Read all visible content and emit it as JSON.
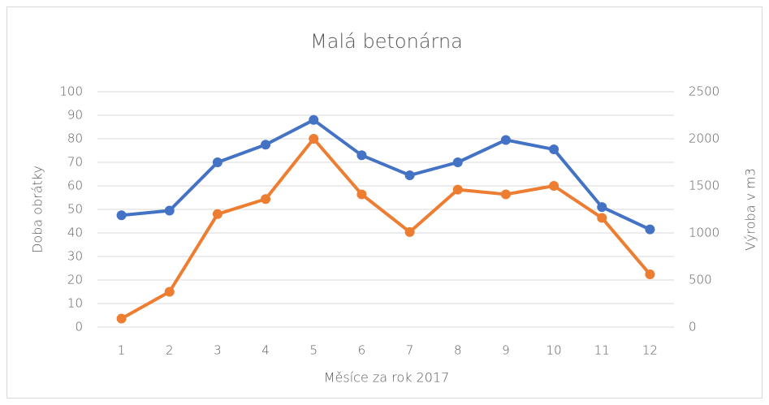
{
  "chart_data": {
    "type": "line",
    "title": "Malá betonárna",
    "x_label": "Měsíce za rok 2017",
    "y_label": "Doba obrátky",
    "y2_label": "Výroba v m3",
    "categories": [
      1,
      2,
      3,
      4,
      5,
      6,
      7,
      8,
      9,
      10,
      11,
      12
    ],
    "series": [
      {
        "color": "#4472c4",
        "values": [
          47.5,
          49.5,
          70,
          77.5,
          88,
          73,
          64.5,
          70,
          79.5,
          75.5,
          51,
          41.5
        ]
      },
      {
        "color": "#ed7d31",
        "axis": "y2",
        "values": [
          90,
          375,
          1200,
          1360,
          2000,
          1410,
          1010,
          1460,
          1410,
          1500,
          1160,
          560
        ]
      }
    ],
    "ylim": [
      0,
      100
    ],
    "yticks": [
      0,
      10,
      20,
      30,
      40,
      50,
      60,
      70,
      80,
      90,
      100
    ],
    "y2lim": [
      0,
      2500
    ],
    "y2ticks": [
      0,
      500,
      1000,
      1500,
      2000,
      2500
    ],
    "grid": true
  }
}
